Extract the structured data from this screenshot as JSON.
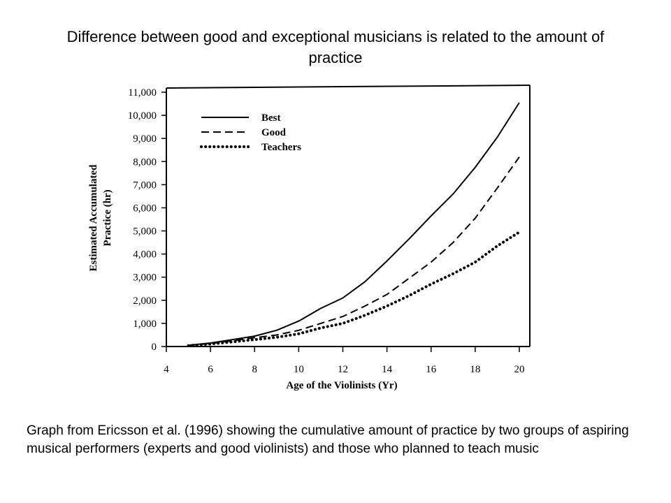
{
  "slide": {
    "title": "Difference between good and exceptional musicians is related to the amount of practice",
    "caption": "Graph from Ericsson et al. (1996) showing the cumulative amount of practice by two groups of aspiring musical performers (experts and good violinists) and those who planned to teach music"
  },
  "chart_data": {
    "type": "line",
    "title": "",
    "xlabel": "Age of the Violinists (Yr)",
    "ylabel": "Estimated Accumulated Practice (hr)",
    "xlim": [
      4,
      20
    ],
    "ylim": [
      0,
      11000
    ],
    "x_ticks": [
      "4",
      "6",
      "8",
      "10",
      "12",
      "14",
      "16",
      "18",
      "20"
    ],
    "y_ticks": [
      "0",
      "1,000",
      "2,000",
      "3,000",
      "4,000",
      "5,000",
      "6,000",
      "7,000",
      "8,000",
      "9,000",
      "10,000",
      "11,000"
    ],
    "legend_position": "top-left",
    "grid": false,
    "x": [
      5,
      6,
      7,
      8,
      9,
      10,
      11,
      12,
      13,
      14,
      15,
      16,
      17,
      18,
      19,
      20
    ],
    "series": [
      {
        "name": "Best",
        "style": "solid",
        "values": [
          50,
          150,
          300,
          450,
          700,
          1100,
          1650,
          2100,
          2800,
          3700,
          4650,
          5650,
          6600,
          7750,
          9050,
          10550
        ]
      },
      {
        "name": "Good",
        "style": "dashed",
        "values": [
          50,
          130,
          250,
          380,
          500,
          700,
          1000,
          1300,
          1750,
          2250,
          2950,
          3650,
          4500,
          5550,
          6850,
          8200
        ]
      },
      {
        "name": "Teachers",
        "style": "dotted",
        "values": [
          40,
          110,
          200,
          300,
          400,
          550,
          800,
          1000,
          1350,
          1750,
          2200,
          2700,
          3150,
          3650,
          4350,
          4950
        ]
      }
    ]
  }
}
